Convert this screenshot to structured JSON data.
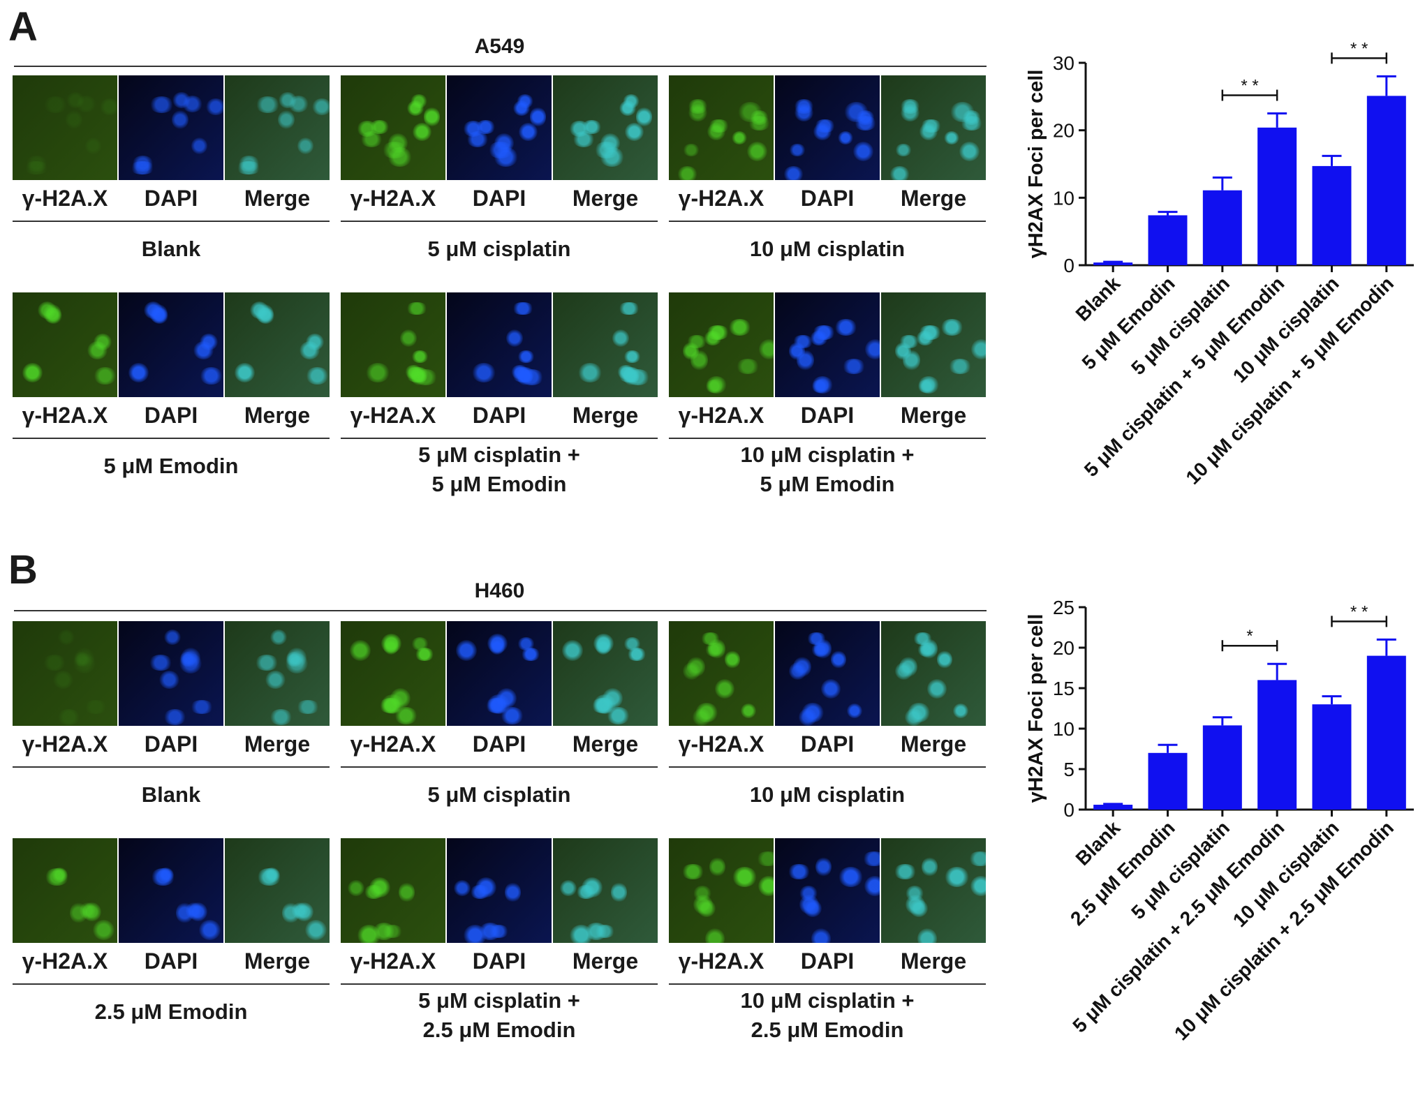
{
  "panels": [
    {
      "letter": "A",
      "cell_line": "A549",
      "channel_labels": [
        "γ-H2A.X",
        "DAPI",
        "Merge"
      ],
      "groups": [
        {
          "lines": [
            "Blank"
          ]
        },
        {
          "lines": [
            "5 μM cisplatin"
          ]
        },
        {
          "lines": [
            "10 μM cisplatin"
          ]
        },
        {
          "lines": [
            "5 μM Emodin"
          ]
        },
        {
          "lines": [
            "5 μM cisplatin +",
            "5 μM Emodin"
          ]
        },
        {
          "lines": [
            "10 μM cisplatin +",
            "5 μM Emodin"
          ]
        }
      ]
    },
    {
      "letter": "B",
      "cell_line": "H460",
      "channel_labels": [
        "γ-H2A.X",
        "DAPI",
        "Merge"
      ],
      "groups": [
        {
          "lines": [
            "Blank"
          ]
        },
        {
          "lines": [
            "5 μM cisplatin"
          ]
        },
        {
          "lines": [
            "10 μM cisplatin"
          ]
        },
        {
          "lines": [
            "2.5 μM Emodin"
          ]
        },
        {
          "lines": [
            "5 μM cisplatin +",
            "2.5 μM Emodin"
          ]
        },
        {
          "lines": [
            "10 μM cisplatin +",
            "2.5 μM Emodin"
          ]
        }
      ]
    }
  ],
  "colors": {
    "bar": "#1010f0",
    "green": "#3a6a10",
    "blue": "#1a3ad0",
    "merge": "#3a8a9a"
  },
  "chart_data": [
    {
      "type": "bar",
      "ylabel": "γH2AX Foci per cell",
      "ylim": [
        0,
        30
      ],
      "yticks": [
        0,
        10,
        20,
        30
      ],
      "categories": [
        "Blank",
        "5 μM Emodin",
        "5 μM cisplatin",
        "5 μM cisplatin + 5 μM Emodin",
        "10 μM cisplatin",
        "10 μM cisplatin + 5 μM Emodin"
      ],
      "values": [
        0.4,
        7.4,
        11.1,
        20.4,
        14.7,
        25.1
      ],
      "errors": [
        0.1,
        0.5,
        1.9,
        2.1,
        1.5,
        2.9
      ],
      "significance": [
        {
          "from": 2,
          "to": 3,
          "label": "* *"
        },
        {
          "from": 4,
          "to": 5,
          "label": "* *"
        }
      ]
    },
    {
      "type": "bar",
      "ylabel": "γH2AX Foci per cell",
      "ylim": [
        0,
        25
      ],
      "yticks": [
        0,
        5,
        10,
        15,
        20,
        25
      ],
      "categories": [
        "Blank",
        "2.5 μM Emodin",
        "5 μM cisplatin",
        "5 μM cisplatin + 2.5 μM Emodin",
        "10 μM cisplatin",
        "10 μM cisplatin + 2.5 μM Emodin"
      ],
      "values": [
        0.6,
        7.0,
        10.4,
        16.0,
        13.0,
        19.0
      ],
      "errors": [
        0.1,
        1.0,
        1.0,
        2.0,
        1.0,
        2.0
      ],
      "significance": [
        {
          "from": 2,
          "to": 3,
          "label": "*"
        },
        {
          "from": 4,
          "to": 5,
          "label": "* *"
        }
      ]
    }
  ]
}
